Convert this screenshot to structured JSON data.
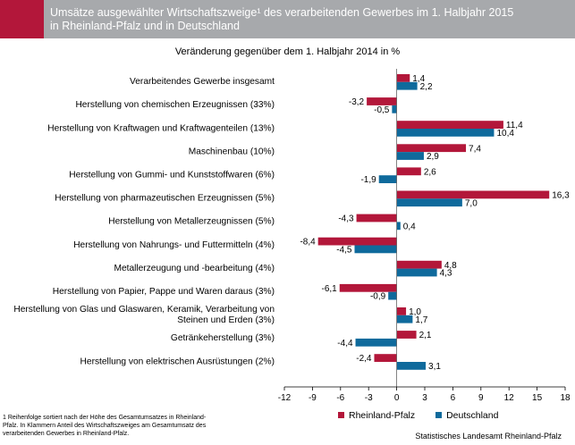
{
  "header": {
    "title": "Umsätze ausgewählter Wirtschaftszweige¹ des verarbeitenden Gewerbes im 1. Halbjahr 2015\nin Rheinland-Pfalz und in Deutschland"
  },
  "colors": {
    "rlp": "#b3173a",
    "de": "#0f6a9c",
    "header_bg": "#a7a9ac"
  },
  "footnote": "1 Reihenfolge sortiert nach der Höhe des Gesamtumsatzes in Rheinland-\nPfalz. In Klammern Anteil des Wirtschaftszweiges am Gesamtumsatz des\nverarbeitenden Gewerbes in Rheinland-Pfalz.",
  "source": "Statistisches Landesamt Rheinland-Pfalz",
  "chart_data": {
    "type": "bar",
    "orientation": "horizontal",
    "subtitle": "Veränderung gegenüber dem 1. Halbjahr 2014  in %",
    "categories": [
      "Verarbeitendes Gewerbe insgesamt",
      "Herstellung von chemischen Erzeugnissen (33%)",
      "Herstellung von Kraftwagen und Kraftwagenteilen (13%)",
      "Maschinenbau (10%)",
      "Herstellung von Gummi- und Kunststoffwaren (6%)",
      "Herstellung von pharmazeutischen Erzeugnissen (5%)",
      "Herstellung von Metallerzeugnissen (5%)",
      "Herstellung von Nahrungs- und Futtermitteln (4%)",
      "Metallerzeugung und -bearbeitung (4%)",
      "Herstellung von Papier, Pappe und Waren daraus (3%)",
      "Herstellung von Glas und Glaswaren, Keramik, Verarbeitung von\nSteinen und Erden (3%)",
      "Getränkeherstellung (3%)",
      "Herstellung von elektrischen Ausrüstungen (2%)"
    ],
    "series": [
      {
        "name": "Rheinland-Pfalz",
        "values": [
          1.4,
          -3.2,
          11.4,
          7.4,
          2.6,
          16.3,
          -4.3,
          -8.4,
          4.8,
          -6.1,
          1.0,
          2.1,
          -2.4
        ],
        "labels": [
          "1,4",
          "-3,2",
          "11,4",
          "7,4",
          "2,6",
          "16,3",
          "-4,3",
          "-8,4",
          "4,8",
          "-6,1",
          "1,0",
          "2,1",
          "-2,4"
        ]
      },
      {
        "name": "Deutschland",
        "values": [
          2.2,
          -0.5,
          10.4,
          2.9,
          -1.9,
          7.0,
          0.4,
          -4.5,
          4.3,
          -0.9,
          1.7,
          -4.4,
          3.1
        ],
        "labels": [
          "2,2",
          "-0,5",
          "10,4",
          "2,9",
          "-1,9",
          "7,0",
          "0,4",
          "-4,5",
          "4,3",
          "-0,9",
          "1,7",
          "-4,4",
          "3,1"
        ]
      }
    ],
    "xlim": [
      -12,
      18
    ],
    "xticks": [
      -12,
      -9,
      -6,
      -3,
      0,
      3,
      6,
      9,
      12,
      15,
      18
    ],
    "legend_position": "bottom-right",
    "grid": false
  }
}
